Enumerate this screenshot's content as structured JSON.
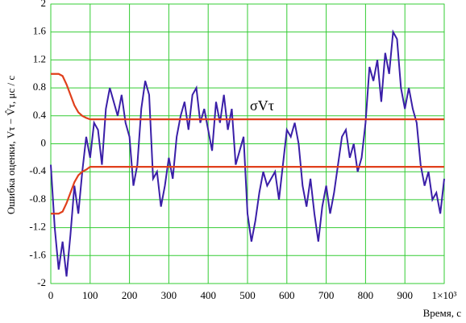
{
  "chart_data": {
    "type": "line",
    "y_label": "Ошибка оценки, Vτ − V̂τ, μc / c",
    "x_label": "Время, с",
    "annotation": "σVτ",
    "x": [
      0,
      10,
      20,
      30,
      40,
      50,
      60,
      70,
      80,
      90,
      100,
      110,
      120,
      130,
      140,
      150,
      160,
      170,
      180,
      190,
      200,
      210,
      220,
      230,
      240,
      250,
      260,
      270,
      280,
      290,
      300,
      310,
      320,
      330,
      340,
      350,
      360,
      370,
      380,
      390,
      400,
      410,
      420,
      430,
      440,
      450,
      460,
      470,
      480,
      490,
      500,
      510,
      520,
      530,
      540,
      550,
      560,
      570,
      580,
      590,
      600,
      610,
      620,
      630,
      640,
      650,
      660,
      670,
      680,
      690,
      700,
      710,
      720,
      730,
      740,
      750,
      760,
      770,
      780,
      790,
      800,
      810,
      820,
      830,
      840,
      850,
      860,
      870,
      880,
      890,
      900,
      910,
      920,
      930,
      940,
      950,
      960,
      970,
      980,
      990,
      1000
    ],
    "series": [
      {
        "color": "#3a1fa8",
        "values": [
          -0.3,
          -1.2,
          -1.8,
          -1.4,
          -1.9,
          -1.3,
          -0.6,
          -1.0,
          -0.4,
          0.1,
          -0.2,
          0.3,
          0.2,
          -0.3,
          0.5,
          0.8,
          0.6,
          0.4,
          0.7,
          0.3,
          0.1,
          -0.6,
          -0.3,
          0.5,
          0.9,
          0.7,
          -0.5,
          -0.4,
          -0.9,
          -0.6,
          -0.2,
          -0.5,
          0.1,
          0.4,
          0.6,
          0.2,
          0.7,
          0.8,
          0.3,
          0.5,
          0.2,
          -0.1,
          0.6,
          0.3,
          0.7,
          0.2,
          0.5,
          -0.3,
          -0.1,
          0.1,
          -1.0,
          -1.4,
          -1.1,
          -0.7,
          -0.4,
          -0.6,
          -0.5,
          -0.4,
          -0.8,
          -0.3,
          0.2,
          0.1,
          0.3,
          0.0,
          -0.6,
          -0.9,
          -0.5,
          -1.0,
          -1.4,
          -0.9,
          -0.6,
          -1.0,
          -0.7,
          -0.3,
          0.1,
          0.2,
          -0.2,
          0.0,
          -0.4,
          -0.2,
          0.3,
          1.1,
          0.9,
          1.2,
          0.6,
          1.3,
          1.0,
          1.6,
          1.5,
          0.8,
          0.5,
          0.8,
          0.5,
          0.3,
          -0.3,
          -0.6,
          -0.4,
          -0.8,
          -0.7,
          -1.0,
          -0.5
        ]
      },
      {
        "color": "#e0401c",
        "values": [
          1.0,
          1.0,
          1.0,
          0.97,
          0.85,
          0.7,
          0.55,
          0.45,
          0.4,
          0.37,
          0.35,
          0.35,
          0.35,
          0.35,
          0.35,
          0.35,
          0.35,
          0.35,
          0.35,
          0.35,
          0.35,
          0.35,
          0.35,
          0.35,
          0.35,
          0.35,
          0.35,
          0.35,
          0.35,
          0.35,
          0.35,
          0.35,
          0.35,
          0.35,
          0.35,
          0.35,
          0.35,
          0.35,
          0.35,
          0.35,
          0.35,
          0.35,
          0.35,
          0.35,
          0.35,
          0.35,
          0.35,
          0.35,
          0.35,
          0.35,
          0.35,
          0.35,
          0.35,
          0.35,
          0.35,
          0.35,
          0.35,
          0.35,
          0.35,
          0.35,
          0.35,
          0.35,
          0.35,
          0.35,
          0.35,
          0.35,
          0.35,
          0.35,
          0.35,
          0.35,
          0.35,
          0.35,
          0.35,
          0.35,
          0.35,
          0.35,
          0.35,
          0.35,
          0.35,
          0.35,
          0.35,
          0.35,
          0.35,
          0.35,
          0.35,
          0.35,
          0.35,
          0.35,
          0.35,
          0.35,
          0.35,
          0.35,
          0.35,
          0.35,
          0.35,
          0.35,
          0.35,
          0.35,
          0.35,
          0.35,
          0.35
        ]
      },
      {
        "color": "#e0401c",
        "values": [
          -1.0,
          -1.0,
          -1.0,
          -0.97,
          -0.85,
          -0.7,
          -0.55,
          -0.45,
          -0.4,
          -0.37,
          -0.33,
          -0.33,
          -0.33,
          -0.33,
          -0.33,
          -0.33,
          -0.33,
          -0.33,
          -0.33,
          -0.33,
          -0.33,
          -0.33,
          -0.33,
          -0.33,
          -0.33,
          -0.33,
          -0.33,
          -0.33,
          -0.33,
          -0.33,
          -0.33,
          -0.33,
          -0.33,
          -0.33,
          -0.33,
          -0.33,
          -0.33,
          -0.33,
          -0.33,
          -0.33,
          -0.33,
          -0.33,
          -0.33,
          -0.33,
          -0.33,
          -0.33,
          -0.33,
          -0.33,
          -0.33,
          -0.33,
          -0.33,
          -0.33,
          -0.33,
          -0.33,
          -0.33,
          -0.33,
          -0.33,
          -0.33,
          -0.33,
          -0.33,
          -0.33,
          -0.33,
          -0.33,
          -0.33,
          -0.33,
          -0.33,
          -0.33,
          -0.33,
          -0.33,
          -0.33,
          -0.33,
          -0.33,
          -0.33,
          -0.33,
          -0.33,
          -0.33,
          -0.33,
          -0.33,
          -0.33,
          -0.33,
          -0.33,
          -0.33,
          -0.33,
          -0.33,
          -0.33,
          -0.33,
          -0.33,
          -0.33,
          -0.33,
          -0.33,
          -0.33,
          -0.33,
          -0.33,
          -0.33,
          -0.33,
          -0.33,
          -0.33,
          -0.33,
          -0.33,
          -0.33,
          -0.33
        ]
      }
    ],
    "xlim": [
      0,
      1000
    ],
    "xticks": [
      0,
      100,
      200,
      300,
      400,
      500,
      600,
      700,
      800,
      900,
      {
        "value": 1000,
        "label": "1×10³"
      }
    ],
    "ylim": [
      -2,
      2
    ],
    "yticks": [
      -2,
      -1.6,
      -1.2,
      -0.8,
      -0.4,
      0,
      0.4,
      0.8,
      1.2,
      1.6,
      2
    ],
    "grid": true
  }
}
